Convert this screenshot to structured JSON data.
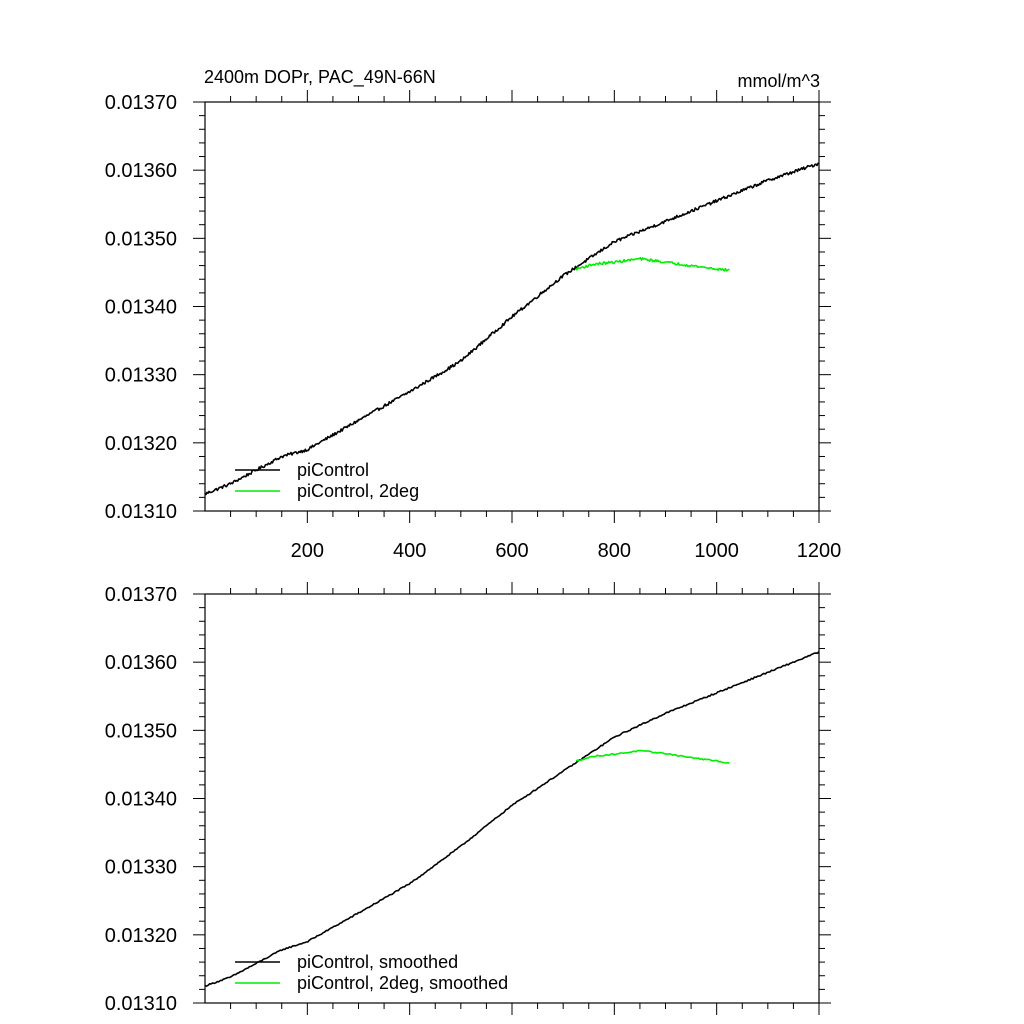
{
  "colors": {
    "series_black": "#000000",
    "series_green": "#00ee00"
  },
  "chart_data": [
    {
      "type": "line",
      "title": "2400m DOPr, PAC_49N-66N",
      "units": "mmol/m^3",
      "xlabel": "",
      "ylabel": "",
      "xlim": [
        0,
        1200
      ],
      "ylim": [
        0.0131,
        0.0137
      ],
      "x_ticks": [
        200,
        400,
        600,
        800,
        1000,
        1200
      ],
      "x_tick_labels": [
        "200",
        "400",
        "600",
        "800",
        "1000",
        "1200"
      ],
      "y_ticks": [
        0.0131,
        0.0132,
        0.0133,
        0.0134,
        0.0135,
        0.0136,
        0.0137
      ],
      "y_tick_labels": [
        "0.01310",
        "0.01320",
        "0.01330",
        "0.01340",
        "0.01350",
        "0.01360",
        "0.01370"
      ],
      "legend": [
        "piControl",
        "piControl, 2deg"
      ],
      "legend_position": "bottom-left",
      "series": [
        {
          "name": "piControl",
          "color": "#000000",
          "noise": 2.2e-06,
          "x": [
            0,
            50,
            100,
            150,
            200,
            300,
            400,
            500,
            600,
            700,
            750,
            800,
            900,
            1000,
            1100,
            1200
          ],
          "y": [
            0.013125,
            0.01314,
            0.01316,
            0.01318,
            0.01319,
            0.013233,
            0.013275,
            0.01332,
            0.013385,
            0.013445,
            0.01347,
            0.013495,
            0.013525,
            0.013555,
            0.013585,
            0.01361
          ]
        },
        {
          "name": "piControl, 2deg",
          "color": "#00ee00",
          "noise": 1.8e-06,
          "x": [
            725,
            760,
            800,
            850,
            900,
            950,
            1000,
            1025
          ],
          "y": [
            0.013455,
            0.013462,
            0.013465,
            0.01347,
            0.013465,
            0.01346,
            0.013455,
            0.013453
          ]
        }
      ]
    },
    {
      "type": "line",
      "title": "",
      "units": "",
      "xlabel": "",
      "ylabel": "",
      "xlim": [
        0,
        1200
      ],
      "ylim": [
        0.0131,
        0.0137
      ],
      "x_ticks": [
        200,
        400,
        600,
        800,
        1000,
        1200
      ],
      "x_tick_labels": [],
      "y_ticks": [
        0.0131,
        0.0132,
        0.0133,
        0.0134,
        0.0135,
        0.0136,
        0.0137
      ],
      "y_tick_labels": [
        "0.01310",
        "0.01320",
        "0.01330",
        "0.01340",
        "0.01350",
        "0.01360",
        "0.01370"
      ],
      "legend": [
        "piControl, smoothed",
        "piControl, 2deg, smoothed"
      ],
      "legend_position": "bottom-left",
      "series": [
        {
          "name": "piControl, smoothed",
          "color": "#000000",
          "noise": 1e-06,
          "x": [
            0,
            50,
            100,
            150,
            200,
            300,
            400,
            500,
            600,
            700,
            750,
            800,
            900,
            1000,
            1100,
            1200
          ],
          "y": [
            0.013125,
            0.013138,
            0.013158,
            0.013178,
            0.01319,
            0.013232,
            0.013275,
            0.01333,
            0.01339,
            0.01344,
            0.013465,
            0.01349,
            0.013525,
            0.013555,
            0.013585,
            0.013615
          ]
        },
        {
          "name": "piControl, 2deg, smoothed",
          "color": "#00ee00",
          "noise": 9e-07,
          "x": [
            725,
            760,
            800,
            850,
            900,
            950,
            1000,
            1025
          ],
          "y": [
            0.013455,
            0.013462,
            0.013465,
            0.01347,
            0.013466,
            0.01346,
            0.013455,
            0.013452
          ]
        }
      ]
    }
  ]
}
